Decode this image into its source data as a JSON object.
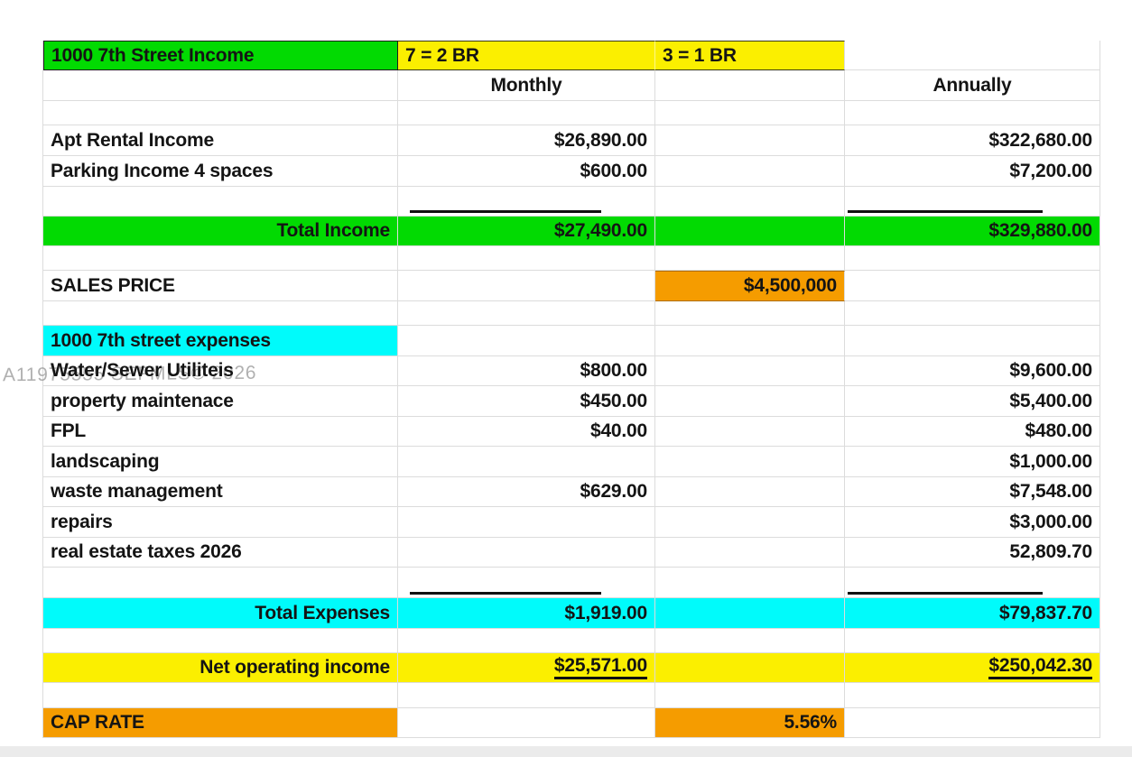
{
  "watermark": "A11975555 SEFMLS© 2026",
  "colors": {
    "green": "#02da02",
    "yellow": "#fbef00",
    "cyan": "#00fbfb",
    "orange": "#f59c00"
  },
  "header": {
    "title": "1000 7th Street Income",
    "legend_2br": "7 = 2 BR",
    "legend_1br": "3 = 1 BR",
    "monthly": "Monthly",
    "annually": "Annually"
  },
  "income": {
    "rows": [
      {
        "label": "Apt Rental Income",
        "monthly": "$26,890.00",
        "annually": "$322,680.00"
      },
      {
        "label": "Parking Income 4 spaces",
        "monthly": "$600.00",
        "annually": "$7,200.00"
      }
    ],
    "total": {
      "label": "Total Income",
      "monthly": "$27,490.00",
      "annually": "$329,880.00"
    }
  },
  "sales_price": {
    "label": "SALES PRICE",
    "value": "$4,500,000"
  },
  "expenses": {
    "title": "1000 7th street expenses",
    "rows": [
      {
        "label": "Water/Sewer Utiliteis",
        "monthly": "$800.00",
        "annually": "$9,600.00"
      },
      {
        "label": "property maintenace",
        "monthly": "$450.00",
        "annually": "$5,400.00"
      },
      {
        "label": "FPL",
        "monthly": "$40.00",
        "annually": "$480.00"
      },
      {
        "label": "landscaping",
        "monthly": "",
        "annually": "$1,000.00"
      },
      {
        "label": "waste management",
        "monthly": "$629.00",
        "annually": "$7,548.00"
      },
      {
        "label": "repairs",
        "monthly": "",
        "annually": "$3,000.00"
      },
      {
        "label": "real estate taxes 2026",
        "monthly": "",
        "annually": "52,809.70"
      }
    ],
    "total": {
      "label": "Total Expenses",
      "monthly": "$1,919.00",
      "annually": "$79,837.70"
    }
  },
  "noi": {
    "label": "Net operating income",
    "monthly": "$25,571.00",
    "annually": "$250,042.30"
  },
  "cap_rate": {
    "label": "CAP RATE",
    "value": "5.56%"
  }
}
